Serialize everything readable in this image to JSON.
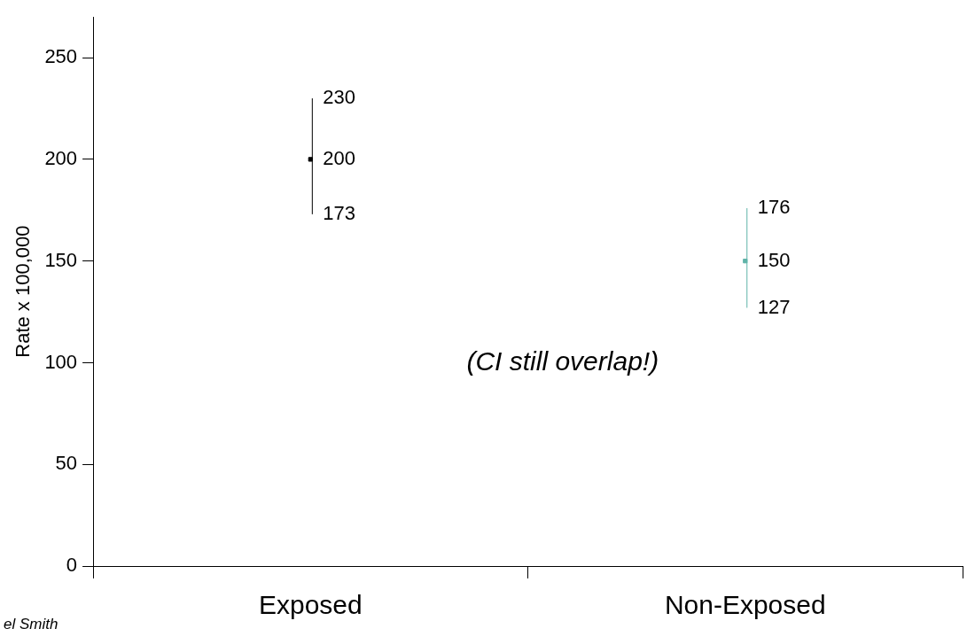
{
  "chart_data": {
    "type": "scatter",
    "ylabel": "Rate x 100,000",
    "categories": [
      "Exposed",
      "Non-Exposed"
    ],
    "series": [
      {
        "color": "#000000",
        "values": [
          200,
          null
        ],
        "errors": [
          [
            173,
            230
          ],
          null
        ]
      },
      {
        "color": "#5fb3a8",
        "values": [
          null,
          150
        ],
        "errors": [
          null,
          [
            127,
            176
          ]
        ]
      }
    ],
    "ylim": [
      0,
      270
    ],
    "yticks": [
      0,
      50,
      100,
      150,
      200,
      250
    ],
    "grid": false,
    "legend": false,
    "annotations": [
      {
        "text": "230",
        "x": "Exposed",
        "y": 230
      },
      {
        "text": "200",
        "x": "Exposed",
        "y": 200
      },
      {
        "text": "173",
        "x": "Exposed",
        "y": 173
      },
      {
        "text": "176",
        "x": "Non-Exposed",
        "y": 176
      },
      {
        "text": "150",
        "x": "Non-Exposed",
        "y": 150
      },
      {
        "text": "127",
        "x": "Non-Exposed",
        "y": 127
      },
      "(CI still overlap!)",
      "el Smith"
    ]
  }
}
